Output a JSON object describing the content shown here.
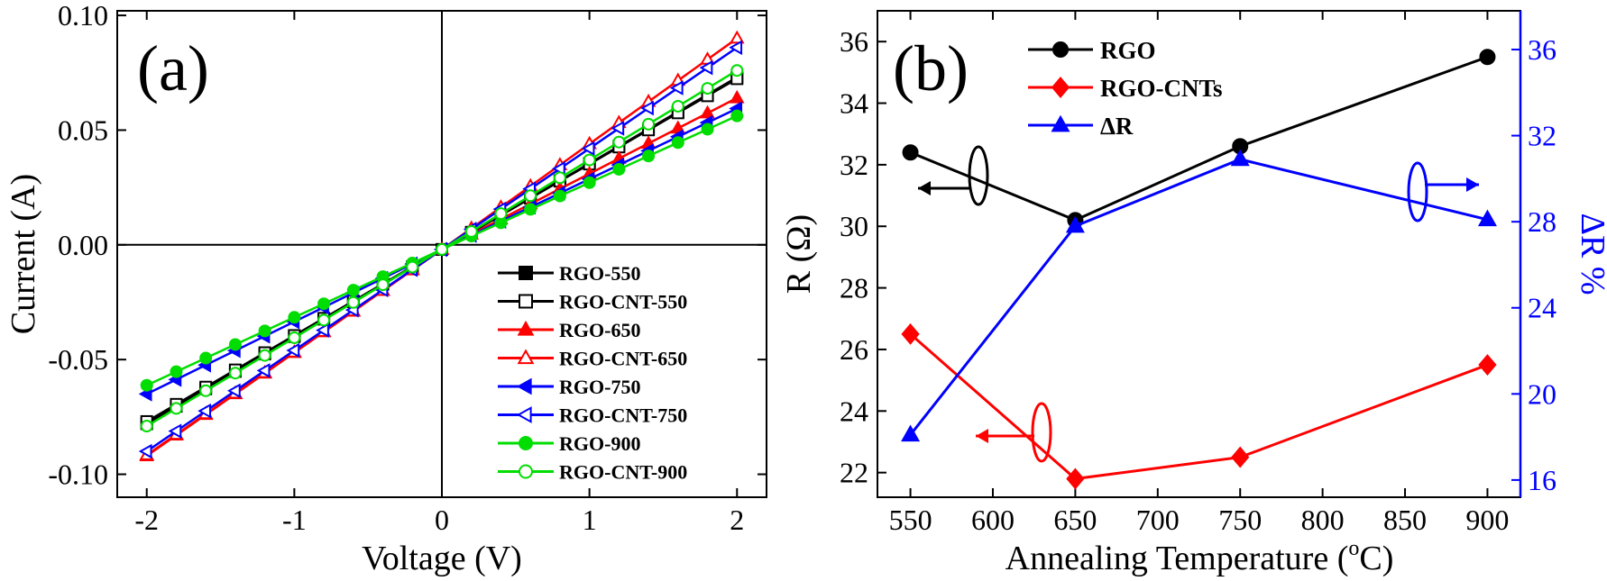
{
  "chart_data": [
    {
      "type": "line",
      "panel_label": "(a)",
      "xlabel": "Voltage (V)",
      "ylabel": "Current (A)",
      "xlim": [
        -2.2,
        2.2
      ],
      "ylim": [
        -0.11,
        0.102
      ],
      "xticks": [
        -2,
        -1,
        0,
        1,
        2
      ],
      "xtick_labels": [
        "-2",
        "-1",
        "0",
        "1",
        "2"
      ],
      "yticks": [
        -0.1,
        -0.05,
        0.0,
        0.05,
        0.1
      ],
      "ytick_labels": [
        "-0.10",
        "-0.05",
        "0.00",
        "0.05",
        "0.10"
      ],
      "reference_lines": {
        "x": 0,
        "y": 0
      },
      "legend_position": "bottom-right",
      "x": [
        -2.0,
        -1.8,
        -1.6,
        -1.4,
        -1.2,
        -1.0,
        -0.8,
        -0.6,
        -0.4,
        -0.2,
        0.0,
        0.2,
        0.4,
        0.6,
        0.8,
        1.0,
        1.2,
        1.4,
        1.6,
        1.8,
        2.0
      ],
      "series": [
        {
          "name": "RGO-550",
          "color": "#000000",
          "marker": "square",
          "filled": true,
          "slope_pos": 0.0375,
          "slope_neg": 0.038,
          "offset": -0.002
        },
        {
          "name": "RGO-CNT-550",
          "color": "#000000",
          "marker": "square",
          "filled": false,
          "slope_pos": 0.0372,
          "slope_neg": 0.0375,
          "offset": -0.002
        },
        {
          "name": "RGO-650",
          "color": "#ff0000",
          "marker": "triangle-up",
          "filled": true,
          "slope_pos": 0.033,
          "slope_neg": 0.045,
          "offset": -0.002
        },
        {
          "name": "RGO-CNT-650",
          "color": "#ff0000",
          "marker": "triangle-up",
          "filled": false,
          "slope_pos": 0.046,
          "slope_neg": 0.0448,
          "offset": -0.002
        },
        {
          "name": "RGO-750",
          "color": "#0000ff",
          "marker": "triangle-left",
          "filled": true,
          "slope_pos": 0.0307,
          "slope_neg": 0.0315,
          "offset": -0.002
        },
        {
          "name": "RGO-CNT-750",
          "color": "#0000ff",
          "marker": "triangle-left",
          "filled": false,
          "slope_pos": 0.044,
          "slope_neg": 0.044,
          "offset": -0.002
        },
        {
          "name": "RGO-900",
          "color": "#00dd00",
          "marker": "circle",
          "filled": true,
          "slope_pos": 0.0291,
          "slope_neg": 0.0296,
          "offset": -0.002
        },
        {
          "name": "RGO-CNT-900",
          "color": "#00dd00",
          "marker": "circle",
          "filled": false,
          "slope_pos": 0.039,
          "slope_neg": 0.0385,
          "offset": -0.002
        }
      ]
    },
    {
      "type": "line",
      "panel_label": "(b)",
      "xlabel": "Annealing Temperature (",
      "xlabel_sup": "o",
      "xlabel_tail": "C)",
      "ylabel": "R (Ω)",
      "y2label": "ΔR %",
      "xlim": [
        530,
        920
      ],
      "ylim": [
        21.2,
        37
      ],
      "y2lim": [
        15.2,
        37.8
      ],
      "xticks": [
        550,
        600,
        650,
        700,
        750,
        800,
        850,
        900
      ],
      "xtick_labels": [
        "550",
        "600",
        "650",
        "700",
        "750",
        "800",
        "850",
        "900"
      ],
      "yticks": [
        22,
        24,
        26,
        28,
        30,
        32,
        34,
        36
      ],
      "ytick_labels": [
        "22",
        "24",
        "26",
        "28",
        "30",
        "32",
        "34",
        "36"
      ],
      "y2ticks": [
        16,
        20,
        24,
        28,
        32,
        36
      ],
      "y2tick_labels": [
        "16",
        "20",
        "24",
        "28",
        "32",
        "36"
      ],
      "legend_position": "top-left",
      "series": [
        {
          "name": "RGO",
          "color": "#000000",
          "marker": "circle",
          "axis": "left",
          "x": [
            550,
            650,
            750,
            900
          ],
          "values": [
            32.4,
            30.2,
            32.6,
            35.5
          ]
        },
        {
          "name": "RGO-CNTs",
          "color": "#ff0000",
          "marker": "diamond",
          "axis": "left",
          "x": [
            550,
            650,
            750,
            900
          ],
          "values": [
            26.5,
            21.8,
            22.5,
            25.5
          ]
        },
        {
          "name": "ΔR",
          "color": "#0000ff",
          "marker": "triangle-up",
          "axis": "right",
          "x": [
            550,
            650,
            750,
            900
          ],
          "values": [
            18.1,
            27.8,
            30.9,
            28.1
          ]
        }
      ]
    }
  ]
}
